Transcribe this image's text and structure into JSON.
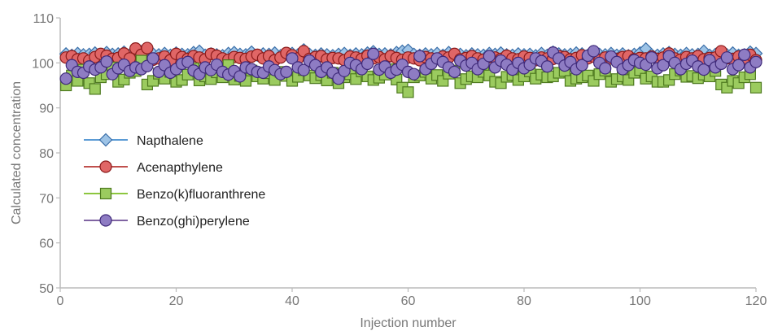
{
  "chart_data": {
    "type": "scatter",
    "xlabel": "Injection number",
    "ylabel": "Calculated concentration",
    "xlim": [
      0,
      120
    ],
    "ylim": [
      50,
      110
    ],
    "x_ticks": [
      "0",
      "20",
      "40",
      "60",
      "80",
      "100",
      "120"
    ],
    "y_ticks": [
      "50",
      "60",
      "70",
      "80",
      "90",
      "100",
      "110"
    ],
    "grid": false,
    "legend_position": "left-middle",
    "series": [
      {
        "name": "Napthalene",
        "marker": "diamond",
        "color": "#9DC3E6",
        "edge": "#3A6EA8",
        "line_color": "#5B9BD5",
        "x": [
          1,
          2,
          3,
          4,
          5,
          6,
          7,
          8,
          9,
          10,
          11,
          12,
          13,
          14,
          15,
          16,
          17,
          18,
          19,
          20,
          21,
          22,
          23,
          24,
          25,
          26,
          27,
          28,
          29,
          30,
          31,
          32,
          33,
          34,
          35,
          36,
          37,
          38,
          39,
          40,
          41,
          42,
          43,
          44,
          45,
          46,
          47,
          48,
          49,
          50,
          51,
          52,
          53,
          54,
          55,
          56,
          57,
          58,
          59,
          60,
          61,
          62,
          63,
          64,
          65,
          66,
          67,
          68,
          69,
          70,
          71,
          72,
          73,
          74,
          75,
          76,
          77,
          78,
          79,
          80,
          81,
          82,
          83,
          84,
          85,
          86,
          87,
          88,
          89,
          90,
          91,
          92,
          93,
          94,
          95,
          96,
          97,
          98,
          99,
          100,
          101,
          102,
          103,
          104,
          105,
          106,
          107,
          108,
          109,
          110,
          111,
          112,
          113,
          114,
          115,
          116,
          117,
          118,
          119,
          120
        ],
        "y": [
          102.0,
          101.7,
          102.1,
          101.8,
          101.9,
          102.2,
          101.6,
          102.3,
          101.9,
          102.0,
          102.4,
          101.8,
          101.7,
          102.5,
          101.6,
          102.0,
          101.8,
          102.1,
          101.7,
          102.2,
          101.9,
          101.8,
          102.3,
          102.6,
          101.7,
          102.0,
          101.8,
          101.6,
          102.1,
          102.3,
          101.9,
          101.8,
          102.4,
          101.7,
          102.0,
          101.9,
          102.2,
          101.6,
          102.0,
          102.1,
          101.8,
          102.9,
          101.9,
          101.7,
          102.0,
          101.8,
          101.6,
          101.9,
          102.1,
          101.7,
          102.0,
          101.8,
          102.2,
          102.5,
          101.9,
          102.0,
          101.8,
          102.3,
          102.6,
          102.8,
          101.9,
          101.7,
          102.0,
          101.8,
          102.1,
          101.7,
          102.3,
          101.8,
          101.9,
          101.6,
          102.0,
          101.8,
          101.7,
          102.1,
          101.9,
          102.2,
          101.8,
          101.7,
          102.0,
          101.8,
          101.9,
          101.6,
          102.1,
          101.7,
          102.4,
          102.0,
          101.8,
          101.9,
          102.2,
          102.0,
          101.7,
          102.5,
          101.9,
          101.8,
          102.1,
          101.7,
          102.0,
          101.6,
          101.9,
          102.2,
          103.1,
          101.8,
          101.7,
          102.0,
          102.3,
          101.9,
          101.7,
          102.1,
          101.8,
          101.9,
          102.6,
          101.7,
          101.9,
          102.0,
          101.8,
          102.2,
          101.7,
          101.8,
          102.4,
          102.1
        ]
      },
      {
        "name": "Acenapthylene",
        "marker": "circle",
        "color": "#E06666",
        "edge": "#8B1A1A",
        "line_color": "#C0504D",
        "x": [
          1,
          2,
          3,
          4,
          5,
          6,
          7,
          8,
          9,
          10,
          11,
          12,
          13,
          14,
          15,
          16,
          17,
          18,
          19,
          20,
          21,
          22,
          23,
          24,
          25,
          26,
          27,
          28,
          29,
          30,
          31,
          32,
          33,
          34,
          35,
          36,
          37,
          38,
          39,
          40,
          41,
          42,
          43,
          44,
          45,
          46,
          47,
          48,
          49,
          50,
          51,
          52,
          53,
          54,
          55,
          56,
          57,
          58,
          59,
          60,
          61,
          62,
          63,
          64,
          65,
          66,
          67,
          68,
          69,
          70,
          71,
          72,
          73,
          74,
          75,
          76,
          77,
          78,
          79,
          80,
          81,
          82,
          83,
          84,
          85,
          86,
          87,
          88,
          89,
          90,
          91,
          92,
          93,
          94,
          95,
          96,
          97,
          98,
          99,
          100,
          101,
          102,
          103,
          104,
          105,
          106,
          107,
          108,
          109,
          110,
          111,
          112,
          113,
          114,
          115,
          116,
          117,
          118,
          119,
          120
        ],
        "y": [
          101.2,
          101.5,
          100.8,
          101.0,
          100.5,
          101.3,
          102.0,
          101.6,
          100.9,
          101.1,
          102.1,
          101.0,
          103.2,
          101.8,
          103.3,
          100.7,
          101.0,
          101.4,
          100.6,
          102.0,
          101.3,
          100.9,
          101.5,
          101.2,
          100.8,
          102.0,
          101.6,
          101.0,
          100.7,
          101.3,
          101.1,
          100.9,
          101.4,
          101.8,
          101.0,
          101.5,
          100.6,
          101.2,
          102.2,
          101.7,
          101.0,
          102.6,
          100.9,
          101.3,
          101.5,
          100.8,
          101.1,
          101.0,
          100.6,
          101.4,
          101.2,
          100.9,
          101.6,
          101.0,
          101.3,
          100.8,
          101.5,
          101.1,
          100.7,
          101.2,
          101.0,
          100.6,
          101.3,
          101.0,
          100.9,
          101.4,
          101.2,
          102.0,
          100.8,
          101.1,
          101.5,
          101.0,
          100.7,
          101.3,
          101.2,
          100.9,
          101.6,
          101.0,
          100.8,
          101.4,
          101.1,
          100.6,
          101.2,
          101.0,
          100.9,
          101.5,
          101.3,
          100.8,
          101.1,
          101.7,
          101.0,
          101.4,
          100.6,
          101.2,
          101.0,
          100.9,
          101.3,
          101.5,
          100.8,
          101.1,
          101.0,
          101.4,
          100.9,
          101.2,
          102.1,
          101.0,
          100.7,
          101.3,
          101.0,
          101.5,
          100.8,
          101.1,
          101.2,
          102.6,
          101.0,
          100.9,
          101.4,
          101.0,
          101.8,
          100.6
        ]
      },
      {
        "name": "Benzo(k)fluoranthrene",
        "marker": "square",
        "color": "#9BCB5F",
        "edge": "#4E7A1F",
        "line_color": "#8DC63F",
        "x": [
          1,
          2,
          3,
          4,
          5,
          6,
          7,
          8,
          9,
          10,
          11,
          12,
          13,
          14,
          15,
          16,
          17,
          18,
          19,
          20,
          21,
          22,
          23,
          24,
          25,
          26,
          27,
          28,
          29,
          30,
          31,
          32,
          33,
          34,
          35,
          36,
          37,
          38,
          39,
          40,
          41,
          42,
          43,
          44,
          45,
          46,
          47,
          48,
          49,
          50,
          51,
          52,
          53,
          54,
          55,
          56,
          57,
          58,
          59,
          60,
          61,
          62,
          63,
          64,
          65,
          66,
          67,
          68,
          69,
          70,
          71,
          72,
          73,
          74,
          75,
          76,
          77,
          78,
          79,
          80,
          81,
          82,
          83,
          84,
          85,
          86,
          87,
          88,
          89,
          90,
          91,
          92,
          93,
          94,
          95,
          96,
          97,
          98,
          99,
          100,
          101,
          102,
          103,
          104,
          105,
          106,
          107,
          108,
          109,
          110,
          111,
          112,
          113,
          114,
          115,
          116,
          117,
          118,
          119,
          120
        ],
        "y": [
          95.0,
          97.2,
          96.0,
          98.5,
          95.5,
          94.2,
          96.8,
          97.5,
          99.0,
          95.8,
          96.3,
          97.8,
          98.2,
          100.5,
          95.2,
          96.0,
          97.6,
          96.5,
          98.0,
          95.8,
          96.2,
          97.4,
          98.8,
          96.1,
          97.0,
          96.4,
          97.9,
          96.8,
          99.5,
          96.3,
          97.1,
          96.0,
          98.3,
          97.0,
          96.5,
          97.7,
          96.2,
          98.0,
          97.1,
          96.0,
          96.9,
          98.4,
          97.2,
          96.6,
          97.3,
          96.1,
          97.8,
          95.5,
          96.8,
          97.5,
          96.4,
          98.1,
          97.0,
          96.2,
          96.7,
          97.4,
          98.6,
          96.3,
          94.5,
          93.5,
          96.8,
          97.2,
          98.0,
          96.5,
          97.3,
          96.0,
          97.6,
          98.3,
          95.5,
          96.4,
          97.0,
          96.8,
          98.0,
          97.2,
          95.8,
          95.5,
          96.9,
          97.3,
          96.2,
          97.0,
          98.1,
          96.5,
          97.4,
          96.8,
          97.0,
          97.8,
          98.2,
          96.0,
          96.5,
          96.8,
          97.2,
          96.0,
          97.5,
          98.3,
          95.8,
          96.4,
          97.0,
          96.2,
          97.8,
          98.4,
          96.5,
          97.0,
          95.8,
          95.8,
          96.2,
          97.5,
          98.3,
          96.9,
          97.1,
          96.6,
          97.4,
          97.0,
          98.2,
          95.2,
          94.5,
          96.0,
          95.5,
          96.8,
          97.5,
          94.5
        ]
      },
      {
        "name": "Benzo(ghi)perylene",
        "marker": "circle",
        "color": "#8E7CC3",
        "edge": "#3F2A7A",
        "line_color": "#8064A2",
        "x": [
          1,
          2,
          3,
          4,
          5,
          6,
          7,
          8,
          9,
          10,
          11,
          12,
          13,
          14,
          15,
          16,
          17,
          18,
          19,
          20,
          21,
          22,
          23,
          24,
          25,
          26,
          27,
          28,
          29,
          30,
          31,
          32,
          33,
          34,
          35,
          36,
          37,
          38,
          39,
          40,
          41,
          42,
          43,
          44,
          45,
          46,
          47,
          48,
          49,
          50,
          51,
          52,
          53,
          54,
          55,
          56,
          57,
          58,
          59,
          60,
          61,
          62,
          63,
          64,
          65,
          66,
          67,
          68,
          69,
          70,
          71,
          72,
          73,
          74,
          75,
          76,
          77,
          78,
          79,
          80,
          81,
          82,
          83,
          84,
          85,
          86,
          87,
          88,
          89,
          90,
          91,
          92,
          93,
          94,
          95,
          96,
          97,
          98,
          99,
          100,
          101,
          102,
          103,
          104,
          105,
          106,
          107,
          108,
          109,
          110,
          111,
          112,
          113,
          114,
          115,
          116,
          117,
          118,
          119,
          120
        ],
        "y": [
          96.5,
          99.5,
          98.0,
          97.8,
          99.2,
          98.5,
          99.0,
          100.3,
          97.5,
          98.8,
          99.6,
          98.2,
          99.0,
          98.6,
          99.3,
          101.0,
          98.0,
          99.5,
          97.8,
          98.6,
          99.8,
          100.2,
          98.3,
          97.5,
          99.0,
          98.4,
          99.6,
          98.0,
          97.4,
          98.2,
          97.0,
          99.0,
          98.6,
          98.0,
          97.8,
          99.2,
          98.4,
          97.5,
          98.0,
          101.0,
          99.0,
          98.4,
          100.5,
          99.5,
          98.0,
          99.0,
          97.8,
          96.5,
          98.2,
          100.0,
          99.5,
          98.6,
          99.8,
          102.0,
          98.5,
          99.2,
          97.8,
          98.5,
          99.6,
          98.0,
          97.5,
          101.5,
          98.6,
          99.8,
          101.0,
          100.2,
          99.0,
          98.0,
          100.5,
          99.4,
          100.0,
          98.6,
          99.8,
          101.5,
          99.0,
          100.5,
          99.6,
          98.5,
          100.0,
          98.8,
          99.6,
          101.0,
          100.4,
          99.2,
          102.3,
          101.0,
          99.4,
          100.2,
          98.6,
          99.5,
          101.6,
          102.6,
          100.0,
          98.8,
          101.4,
          100.2,
          98.6,
          99.5,
          100.6,
          100.0,
          99.6,
          101.2,
          98.8,
          99.5,
          101.5,
          100.0,
          98.6,
          99.8,
          100.5,
          99.2,
          98.5,
          100.6,
          99.0,
          99.8,
          101.2,
          98.6,
          99.5,
          101.8,
          99.0,
          100.2
        ]
      }
    ]
  }
}
